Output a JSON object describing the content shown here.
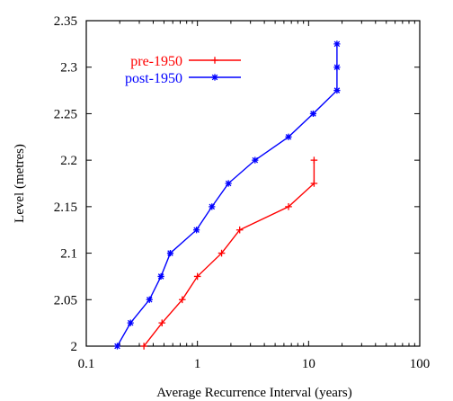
{
  "chart_data": {
    "type": "line",
    "title": "",
    "xlabel": "Average Recurrence Interval (years)",
    "ylabel": "Level (metres)",
    "x_scale": "log",
    "xlim": [
      0.1,
      100
    ],
    "ylim": [
      2.0,
      2.35
    ],
    "x_ticks": [
      0.1,
      1,
      10,
      100
    ],
    "x_tick_labels": [
      "0.1",
      "1",
      "10",
      "100"
    ],
    "y_ticks": [
      2.0,
      2.05,
      2.1,
      2.15,
      2.2,
      2.25,
      2.3,
      2.35
    ],
    "y_tick_labels": [
      "2",
      "2.05",
      "2.1",
      "2.15",
      "2.2",
      "2.25",
      "2.3",
      "2.35"
    ],
    "grid": false,
    "legend_position": "top-left",
    "series": [
      {
        "name": "pre-1950",
        "color": "#ff0000",
        "marker": "plus",
        "points": [
          [
            0.33,
            2.0
          ],
          [
            0.48,
            2.025
          ],
          [
            0.73,
            2.05
          ],
          [
            1.0,
            2.075
          ],
          [
            1.65,
            2.1
          ],
          [
            2.4,
            2.125
          ],
          [
            6.6,
            2.15
          ],
          [
            11.2,
            2.175
          ],
          [
            11.2,
            2.2
          ]
        ]
      },
      {
        "name": "post-1950",
        "color": "#0000ff",
        "marker": "star",
        "points": [
          [
            0.19,
            2.0
          ],
          [
            0.25,
            2.025
          ],
          [
            0.37,
            2.05
          ],
          [
            0.47,
            2.075
          ],
          [
            0.57,
            2.1
          ],
          [
            0.98,
            2.125
          ],
          [
            1.35,
            2.15
          ],
          [
            1.9,
            2.175
          ],
          [
            3.3,
            2.2
          ],
          [
            6.6,
            2.225
          ],
          [
            11.0,
            2.25
          ],
          [
            18.0,
            2.275
          ],
          [
            18.0,
            2.3
          ],
          [
            18.0,
            2.325
          ]
        ]
      }
    ]
  }
}
